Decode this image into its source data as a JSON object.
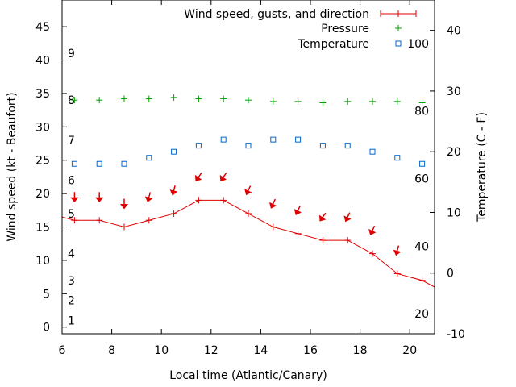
{
  "chart_data": {
    "type": "line",
    "xlabel": "Local time (Atlantic/Canary)",
    "ylabel_left": "Wind speed (kt - Beaufort)",
    "ylabel_right": "Temperature (C - F)",
    "xlim": [
      6,
      21
    ],
    "ylim_left": [
      -1,
      49
    ],
    "ylim_right": [
      -10,
      45
    ],
    "x_ticks": [
      "6",
      "8",
      "10",
      "12",
      "14",
      "16",
      "18",
      "20"
    ],
    "y_left_ticks": [
      "0",
      "5",
      "10",
      "15",
      "20",
      "25",
      "30",
      "35",
      "40",
      "45"
    ],
    "y_right_ticks": [
      "-10",
      "0",
      "10",
      "20",
      "30",
      "40"
    ],
    "beaufort_labels": [
      {
        "text": "1",
        "kt": 1
      },
      {
        "text": "2",
        "kt": 4
      },
      {
        "text": "3",
        "kt": 7
      },
      {
        "text": "4",
        "kt": 11
      },
      {
        "text": "5",
        "kt": 17
      },
      {
        "text": "6",
        "kt": 22
      },
      {
        "text": "7",
        "kt": 28
      },
      {
        "text": "8",
        "kt": 34
      },
      {
        "text": "9",
        "kt": 41
      }
    ],
    "fahrenheit_labels": [
      {
        "text": "20",
        "c": -6.7
      },
      {
        "text": "40",
        "c": 4.4
      },
      {
        "text": "60",
        "c": 15.6
      },
      {
        "text": "80",
        "c": 26.7
      },
      {
        "text": "100",
        "c": 37.8
      }
    ],
    "legend": {
      "placement": "top-right",
      "entries": [
        "Wind speed, gusts, and direction",
        "Pressure",
        "Temperature"
      ]
    },
    "series": [
      {
        "name": "Wind speed, gusts, and direction",
        "color": "#e00000",
        "axis": "left",
        "x": [
          5.5,
          6.5,
          7.5,
          8.5,
          9.5,
          10.5,
          11.5,
          12.5,
          13.5,
          14.5,
          15.5,
          16.5,
          17.5,
          18.5,
          19.5,
          20.5,
          21.5
        ],
        "y": [
          17,
          16,
          16,
          15,
          16,
          17,
          19,
          19,
          17,
          15,
          14,
          13,
          13,
          11,
          8,
          7,
          5
        ]
      },
      {
        "name": "Pressure",
        "color": "#00a000",
        "axis": "left",
        "x": [
          6.5,
          7.5,
          8.5,
          9.5,
          10.5,
          11.5,
          12.5,
          13.5,
          14.5,
          15.5,
          16.5,
          17.5,
          18.5,
          19.5,
          20.5
        ],
        "y": [
          34,
          34,
          34.2,
          34.2,
          34.4,
          34.2,
          34.2,
          34,
          33.8,
          33.8,
          33.6,
          33.8,
          33.8,
          33.8,
          33.6
        ]
      },
      {
        "name": "Temperature",
        "color": "#0066cc",
        "axis": "right",
        "x": [
          6.5,
          7.5,
          8.5,
          9.5,
          10.5,
          11.5,
          12.5,
          13.5,
          14.5,
          15.5,
          16.5,
          17.5,
          18.5,
          19.5,
          20.5
        ],
        "y": [
          18,
          18,
          18,
          19,
          20,
          21,
          22,
          21,
          22,
          22,
          21,
          21,
          20,
          19,
          18
        ]
      }
    ],
    "wind_direction": {
      "color": "#e00000",
      "x": [
        6.5,
        7.5,
        8.5,
        9.5,
        10.5,
        11.5,
        12.5,
        13.5,
        14.5,
        15.5,
        16.5,
        17.5,
        18.5,
        19.5
      ],
      "y": [
        19.5,
        19.5,
        18.5,
        19.5,
        20.5,
        22.5,
        22.5,
        20.5,
        18.5,
        17.5,
        16.5,
        16.5,
        14.5,
        11.5
      ],
      "angle_deg": [
        0,
        0,
        0,
        15,
        15,
        35,
        35,
        25,
        25,
        25,
        35,
        25,
        25,
        15
      ]
    }
  }
}
